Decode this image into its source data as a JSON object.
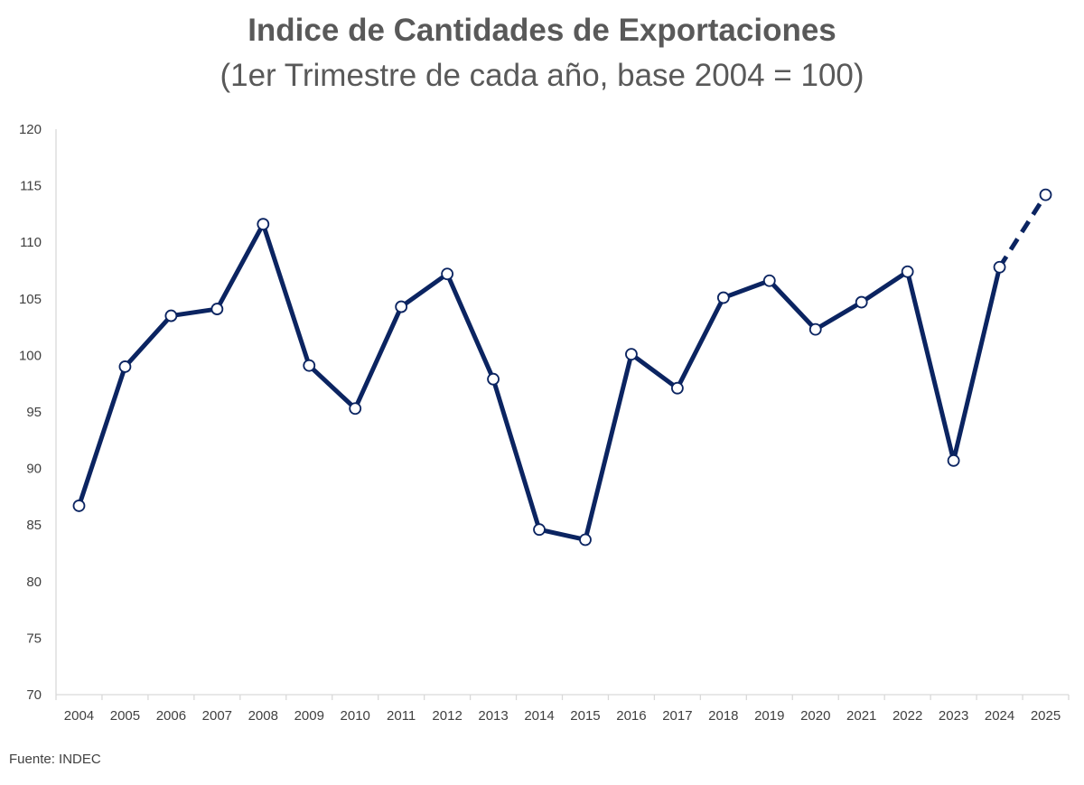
{
  "chart_data": {
    "type": "line",
    "title": "Indice de Cantidades de Exportaciones",
    "subtitle": "(1er Trimestre de cada año, base 2004 = 100)",
    "xlabel": "",
    "ylabel": "",
    "ylim": [
      70,
      120
    ],
    "yticks": [
      "70",
      "75",
      "80",
      "85",
      "90",
      "95",
      "100",
      "105",
      "110",
      "115",
      "120"
    ],
    "categories": [
      "2004",
      "2005",
      "2006",
      "2007",
      "2008",
      "2009",
      "2010",
      "2011",
      "2012",
      "2013",
      "2014",
      "2015",
      "2016",
      "2017",
      "2018",
      "2019",
      "2020",
      "2021",
      "2022",
      "2023",
      "2024",
      "2025"
    ],
    "values": [
      86.7,
      99.0,
      103.5,
      104.1,
      111.6,
      99.1,
      95.3,
      104.3,
      107.2,
      97.9,
      84.6,
      83.7,
      100.1,
      97.1,
      105.1,
      106.6,
      102.3,
      104.7,
      107.4,
      90.7,
      107.8,
      114.2
    ],
    "dashed_from_index": 20,
    "line_color": "#0b2461",
    "grid": false,
    "legend": "none"
  },
  "source": "Fuente: INDEC"
}
